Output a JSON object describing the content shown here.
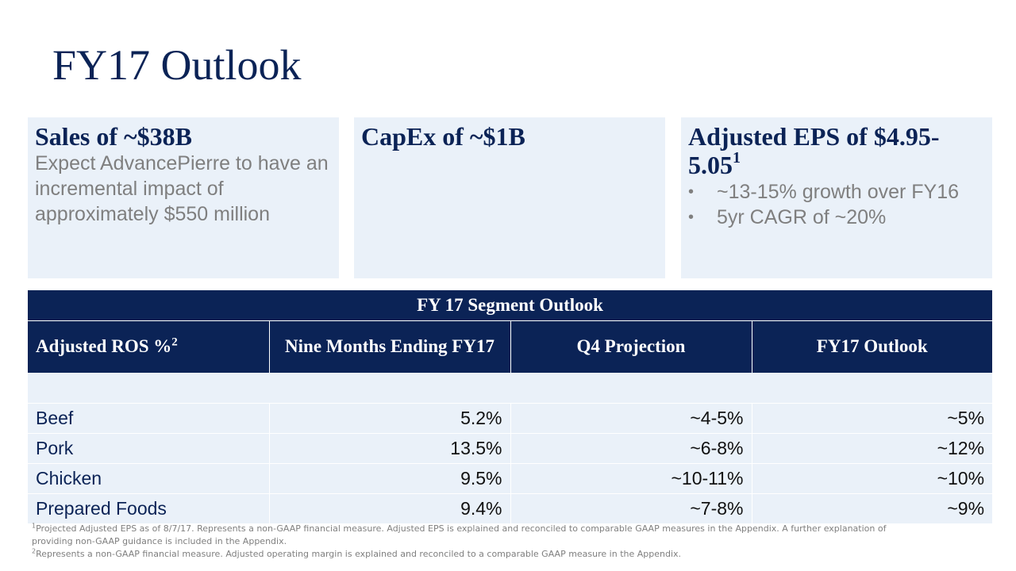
{
  "slide": {
    "title": "FY17 Outlook"
  },
  "cards": {
    "sales": {
      "heading": "Sales of ~$38B",
      "body": "Expect AdvancePierre to have an incremental impact of approximately $550 million"
    },
    "capex": {
      "heading": "CapEx of ~$1B"
    },
    "eps": {
      "heading": "Adjusted EPS of $4.95-5.05",
      "heading_footnote": "1",
      "bullet_symbol": "•",
      "bullets": [
        "~13-15% growth over FY16",
        "5yr CAGR of ~20%"
      ]
    }
  },
  "table": {
    "title": "FY 17 Segment Outlook",
    "columns": [
      {
        "label": "Adjusted ROS %",
        "footnote": "2"
      },
      {
        "label": "Nine Months Ending FY17"
      },
      {
        "label": "Q4 Projection"
      },
      {
        "label": "FY17 Outlook"
      }
    ],
    "rows": [
      {
        "segment": "Beef",
        "nine_months": "5.2%",
        "q4": "~4-5%",
        "fy17": "~5%"
      },
      {
        "segment": "Pork",
        "nine_months": "13.5%",
        "q4": "~6-8%",
        "fy17": "~12%"
      },
      {
        "segment": "Chicken",
        "nine_months": "9.5%",
        "q4": "~10-11%",
        "fy17": "~10%"
      },
      {
        "segment": "Prepared Foods",
        "nine_months": "9.4%",
        "q4": "~7-8%",
        "fy17": "~9%"
      }
    ]
  },
  "footnotes": [
    {
      "marker": "1",
      "text": "Projected Adjusted EPS as of 8/7/17. Represents a non-GAAP financial measure. Adjusted EPS is explained and reconciled to comparable GAAP measures in the Appendix. A further explanation of providing non-GAAP guidance is included in the Appendix."
    },
    {
      "marker": "2",
      "text": "Represents a non-GAAP financial measure. Adjusted operating margin is explained and reconciled to a comparable GAAP measure in the Appendix."
    }
  ]
}
